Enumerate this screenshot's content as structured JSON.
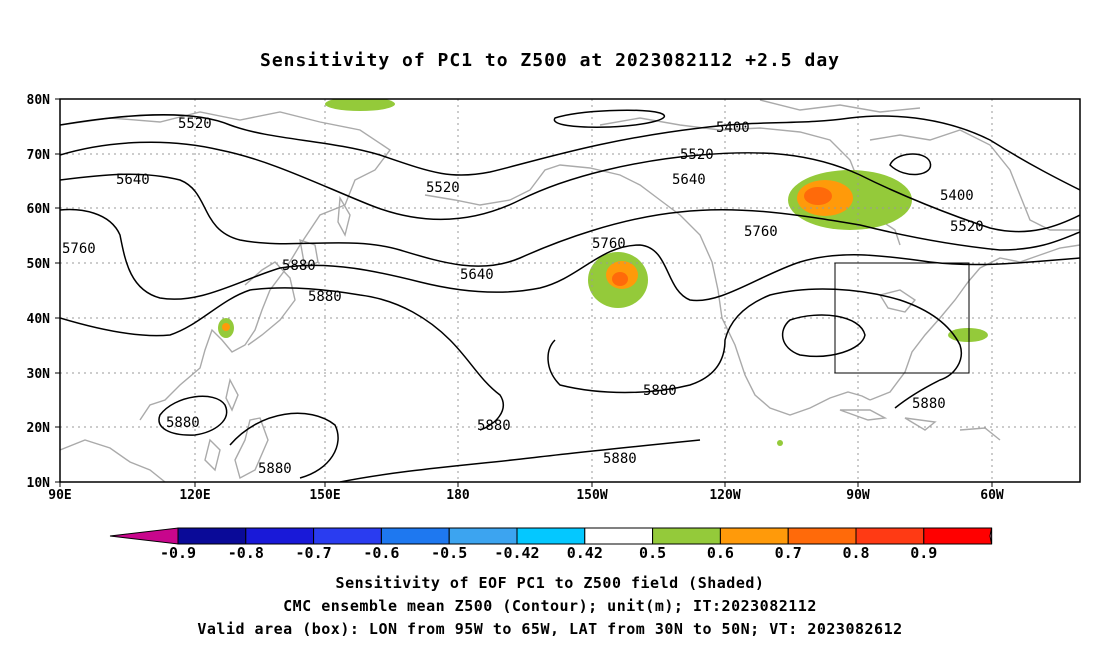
{
  "title": "Sensitivity of PC1 to Z500 at 2023082112 +2.5 day",
  "axes": {
    "lat_labels": [
      "80N",
      "70N",
      "60N",
      "50N",
      "40N",
      "30N",
      "20N",
      "10N"
    ],
    "lon_labels": [
      "90E",
      "120E",
      "150E",
      "180",
      "150W",
      "120W",
      "90W",
      "60W"
    ]
  },
  "contour_labels": [
    "5520",
    "5400",
    "5520",
    "5640",
    "5520",
    "5640",
    "5400",
    "5520",
    "5760",
    "5640",
    "5760",
    "5760",
    "5880",
    "5880",
    "5880",
    "5880",
    "5880",
    "5880",
    "5880",
    "5880"
  ],
  "colorbar": {
    "labels": [
      "-0.9",
      "-0.8",
      "-0.7",
      "-0.6",
      "-0.5",
      "-0.42",
      "0.42",
      "0.5",
      "0.6",
      "0.7",
      "0.8",
      "0.9"
    ],
    "colors": [
      "#c8068c",
      "#0a0a98",
      "#1919d8",
      "#2a3cf0",
      "#1e78f0",
      "#3ca4f0",
      "#04c8ff",
      "#ffffff",
      "#94ca3a",
      "#ff9a0a",
      "#ff6a0a",
      "#ff3a14",
      "#ff0000",
      "#ffa0c8"
    ]
  },
  "shading_colors": {
    "green": "#94ca3a",
    "orange": "#ff9a0a",
    "dark_orange": "#ff6a0a"
  },
  "footer": {
    "line1": "Sensitivity of EOF PC1 to Z500 field (Shaded)",
    "line2": "CMC ensemble mean Z500 (Contour); unit(m); IT:2023082112",
    "line3": "Valid area (box): LON from 95W to 65W, LAT from 30N to 50N; VT: 2023082612"
  }
}
